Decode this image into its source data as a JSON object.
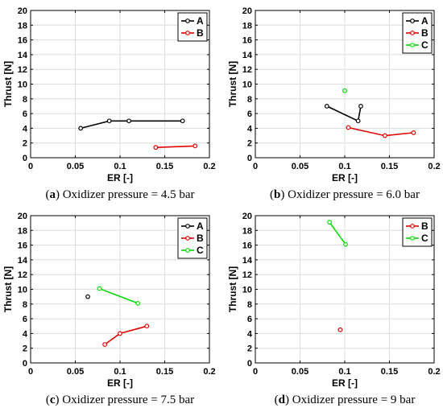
{
  "chart_data": [
    {
      "type": "line",
      "caption_letter": "a",
      "caption_text": " Oxidizer pressure = 4.5 bar",
      "xlabel": "ER [-]",
      "ylabel": "Thrust [N]",
      "xlim": [
        0,
        0.2
      ],
      "ylim": [
        0,
        20
      ],
      "xticks": [
        "0",
        "0.05",
        "0.1",
        "0.15",
        "0.2"
      ],
      "yticks": [
        "0",
        "2",
        "4",
        "6",
        "8",
        "10",
        "12",
        "14",
        "16",
        "18",
        "20"
      ],
      "grid": true,
      "legend_position": "top-right",
      "series": [
        {
          "name": "A",
          "color": "#000000",
          "points": [
            [
              0.056,
              4.0
            ],
            [
              0.088,
              5.0
            ],
            [
              0.11,
              5.0
            ],
            [
              0.17,
              5.0
            ]
          ]
        },
        {
          "name": "B",
          "color": "#e00000",
          "points": [
            [
              0.14,
              1.4
            ],
            [
              0.184,
              1.6
            ]
          ]
        }
      ]
    },
    {
      "type": "line",
      "caption_letter": "b",
      "caption_text": " Oxidizer pressure = 6.0 bar",
      "xlabel": "ER [-]",
      "ylabel": "Thrust [N]",
      "xlim": [
        0,
        0.2
      ],
      "ylim": [
        0,
        20
      ],
      "xticks": [
        "0",
        "0.05",
        "0.1",
        "0.15",
        "0.2"
      ],
      "yticks": [
        "0",
        "2",
        "4",
        "6",
        "8",
        "10",
        "12",
        "14",
        "16",
        "18",
        "20"
      ],
      "grid": true,
      "legend_position": "top-right",
      "series": [
        {
          "name": "A",
          "color": "#000000",
          "points": [
            [
              0.08,
              7.0
            ],
            [
              0.115,
              5.0
            ],
            [
              0.118,
              7.0
            ]
          ]
        },
        {
          "name": "B",
          "color": "#e00000",
          "points": [
            [
              0.104,
              4.1
            ],
            [
              0.145,
              3.0
            ],
            [
              0.177,
              3.4
            ]
          ]
        },
        {
          "name": "C",
          "color": "#00dd00",
          "points": [
            [
              0.1,
              9.1
            ]
          ]
        }
      ]
    },
    {
      "type": "line",
      "caption_letter": "c",
      "caption_text": " Oxidizer pressure = 7.5 bar",
      "xlabel": "ER [-]",
      "ylabel": "Thrust [N]",
      "xlim": [
        0,
        0.2
      ],
      "ylim": [
        0,
        20
      ],
      "xticks": [
        "0",
        "0.05",
        "0.1",
        "0.15",
        "0.2"
      ],
      "yticks": [
        "0",
        "2",
        "4",
        "6",
        "8",
        "10",
        "12",
        "14",
        "16",
        "18",
        "20"
      ],
      "grid": true,
      "legend_position": "top-right",
      "series": [
        {
          "name": "A",
          "color": "#000000",
          "points": [
            [
              0.064,
              9.0
            ]
          ]
        },
        {
          "name": "B",
          "color": "#e00000",
          "points": [
            [
              0.083,
              2.5
            ],
            [
              0.1,
              4.0
            ],
            [
              0.13,
              5.0
            ]
          ]
        },
        {
          "name": "C",
          "color": "#00dd00",
          "points": [
            [
              0.077,
              10.1
            ],
            [
              0.12,
              8.1
            ]
          ]
        }
      ]
    },
    {
      "type": "line",
      "caption_letter": "d",
      "caption_text": " Oxidizer pressure = 9 bar",
      "xlabel": "ER [-]",
      "ylabel": "Thrust [N]",
      "xlim": [
        0,
        0.2
      ],
      "ylim": [
        0,
        20
      ],
      "xticks": [
        "0",
        "0.05",
        "0.1",
        "0.15",
        "0.2"
      ],
      "yticks": [
        "0",
        "2",
        "4",
        "6",
        "8",
        "10",
        "12",
        "14",
        "16",
        "18",
        "20"
      ],
      "grid": true,
      "legend_position": "top-right",
      "series": [
        {
          "name": "B",
          "color": "#e00000",
          "points": [
            [
              0.095,
              4.5
            ]
          ]
        },
        {
          "name": "C",
          "color": "#00dd00",
          "points": [
            [
              0.083,
              19.1
            ],
            [
              0.101,
              16.1
            ]
          ]
        }
      ]
    }
  ]
}
